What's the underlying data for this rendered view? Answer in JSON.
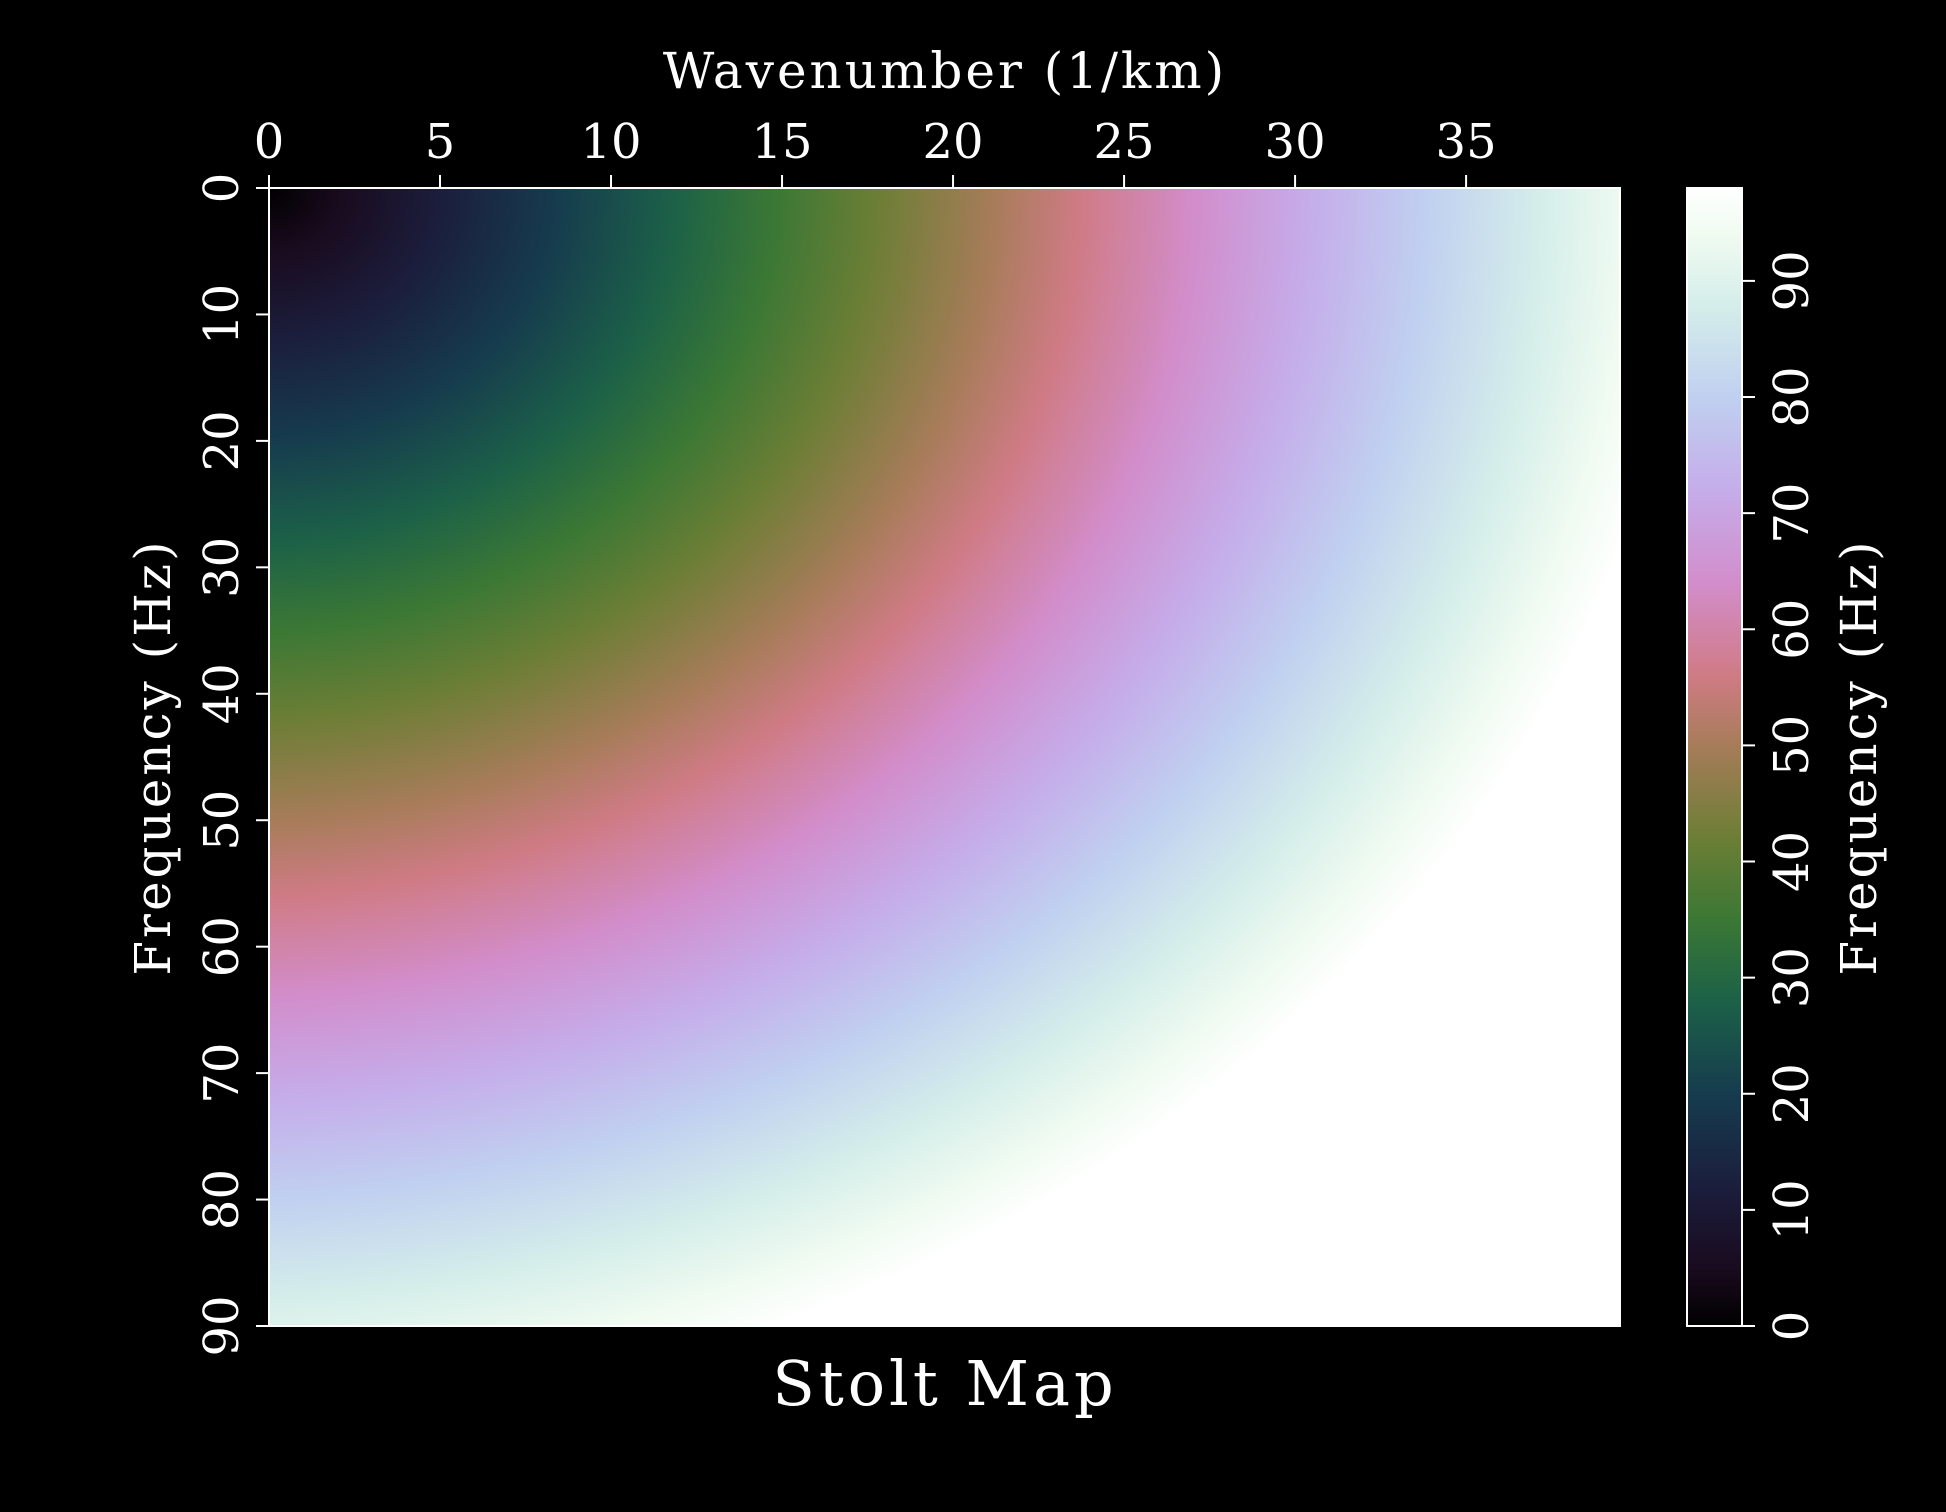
{
  "chart_data": {
    "type": "heatmap",
    "title": "Stolt Map",
    "xlabel": "Wavenumber (1/km)",
    "ylabel": "Frequency (Hz)",
    "xlim": [
      0,
      39.5
    ],
    "ylim": [
      0,
      90
    ],
    "y_inverted": true,
    "x_axis_position": "top",
    "x_ticks": [
      0,
      5,
      10,
      15,
      20,
      25,
      30,
      35
    ],
    "y_ticks": [
      0,
      10,
      20,
      30,
      40,
      50,
      60,
      70,
      80,
      90
    ],
    "value_description": "Mapped frequency value at each (wavenumber, frequency) cell; increases with frequency and with wavenumber",
    "grid": false,
    "colorbar": {
      "label": "Frequency (Hz)",
      "position": "right",
      "range": [
        0,
        98
      ],
      "ticks": [
        0,
        10,
        20,
        30,
        40,
        50,
        60,
        70,
        80,
        90
      ],
      "colormap": "cubehelix",
      "colormap_stops": [
        {
          "value": 0,
          "color": "#000000"
        },
        {
          "value": 5,
          "color": "#1a0b1f"
        },
        {
          "value": 12,
          "color": "#1b1e3d"
        },
        {
          "value": 20,
          "color": "#163c4e"
        },
        {
          "value": 28,
          "color": "#1c6148"
        },
        {
          "value": 35,
          "color": "#3b7835"
        },
        {
          "value": 42,
          "color": "#6c7e35"
        },
        {
          "value": 50,
          "color": "#a77c59"
        },
        {
          "value": 56,
          "color": "#cf7b85"
        },
        {
          "value": 64,
          "color": "#d28dcb"
        },
        {
          "value": 72,
          "color": "#c5adea"
        },
        {
          "value": 80,
          "color": "#c0d0f0"
        },
        {
          "value": 88,
          "color": "#d5eeea"
        },
        {
          "value": 94,
          "color": "#f0fbf1"
        },
        {
          "value": 98,
          "color": "#ffffff"
        }
      ]
    }
  }
}
